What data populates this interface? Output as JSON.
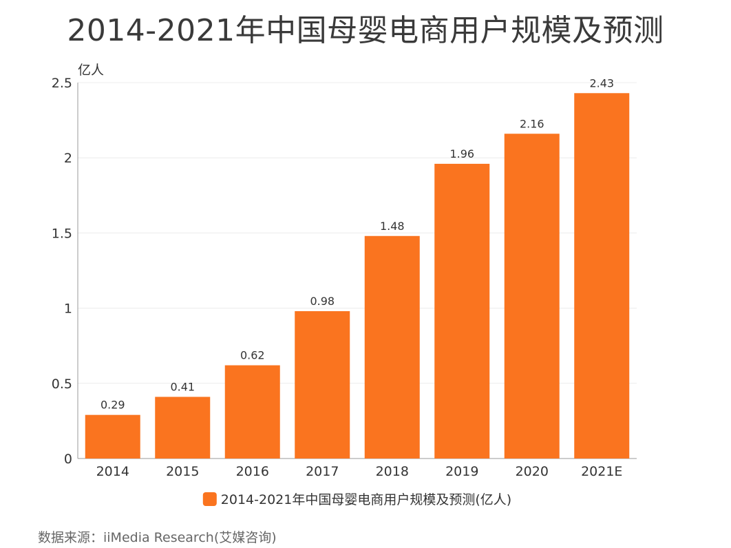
{
  "title": "2014-2021年中国母婴电商用户规模及预测",
  "source": "数据来源：iiMedia Research(艾媒咨询)",
  "colors": {
    "bar": "#FA741F",
    "grid": "#ececec",
    "axis": "#999999",
    "text": "#333333"
  },
  "chart_data": {
    "type": "bar",
    "title": "2014-2021年中国母婴电商用户规模及预测",
    "ylabel": "亿人",
    "xlabel": "",
    "categories": [
      "2014",
      "2015",
      "2016",
      "2017",
      "2018",
      "2019",
      "2020",
      "2021E"
    ],
    "series": [
      {
        "name": "2014-2021年中国母婴电商用户规模及预测(亿人)",
        "values": [
          0.29,
          0.41,
          0.62,
          0.98,
          1.48,
          1.96,
          2.16,
          2.43
        ],
        "value_labels": [
          "0.29",
          "0.41",
          "0.62",
          "0.98",
          "1.48",
          "1.96",
          "2.16",
          "2.43"
        ]
      }
    ],
    "ylim": [
      0,
      2.5
    ],
    "yticks": [
      0,
      0.5,
      1,
      1.5,
      2,
      2.5
    ],
    "ytick_labels": [
      "0",
      "0.5",
      "1",
      "1.5",
      "2",
      "2.5"
    ],
    "grid": true,
    "legend_position": "bottom-center"
  }
}
